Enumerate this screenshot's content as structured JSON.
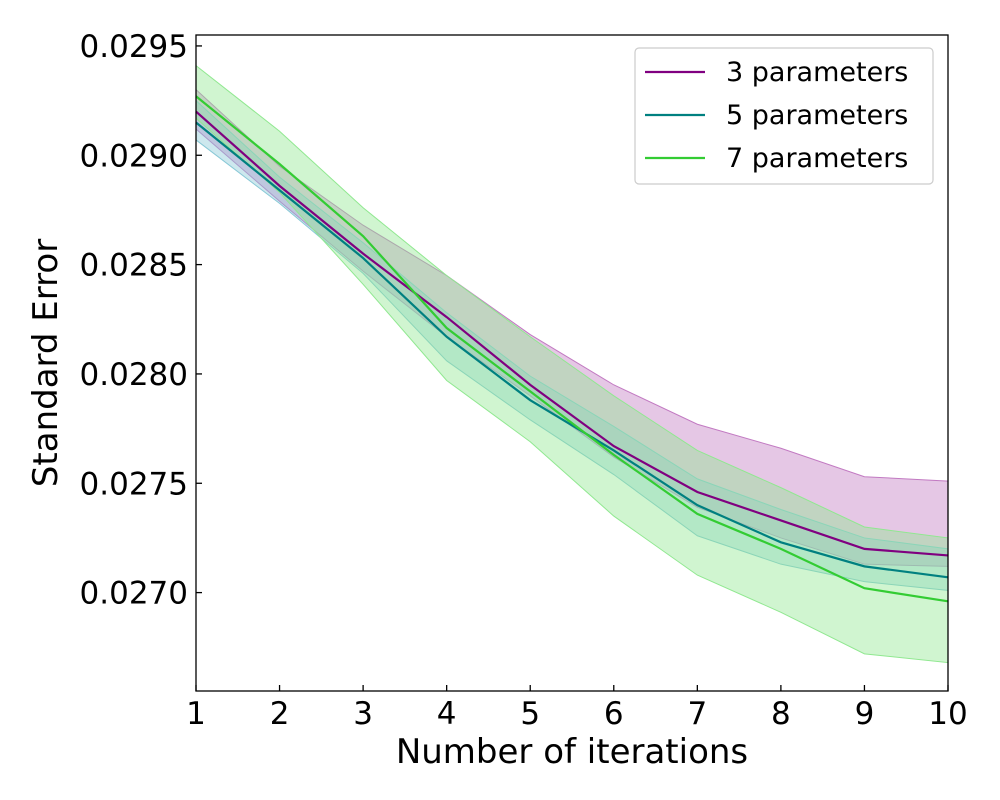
{
  "chart_data": {
    "type": "line",
    "title": "",
    "xlabel": "Number of iterations",
    "ylabel": "Standard Error",
    "xlim": [
      1,
      10
    ],
    "ylim": [
      0.02655,
      0.02955
    ],
    "x_ticks": [
      1,
      2,
      3,
      4,
      5,
      6,
      7,
      8,
      9,
      10
    ],
    "x_tick_labels": [
      "1",
      "2",
      "3",
      "4",
      "5",
      "6",
      "7",
      "8",
      "9",
      "10"
    ],
    "y_ticks": [
      0.027,
      0.0275,
      0.028,
      0.0285,
      0.029,
      0.0295
    ],
    "y_tick_labels": [
      "0.0270",
      "0.0275",
      "0.0280",
      "0.0285",
      "0.0290",
      "0.0295"
    ],
    "grid": false,
    "legend_position": "top-right",
    "x": [
      1,
      2,
      3,
      4,
      5,
      6,
      7,
      8,
      9,
      10
    ],
    "series": [
      {
        "name": "3 parameters",
        "color": "#800080",
        "band_color": "#c27ac2",
        "values": [
          0.0292,
          0.02886,
          0.02855,
          0.02826,
          0.02795,
          0.02767,
          0.02746,
          0.02733,
          0.0272,
          0.02717
        ],
        "lower": [
          0.02912,
          0.02879,
          0.02847,
          0.02817,
          0.0279,
          0.02762,
          0.02739,
          0.02725,
          0.02713,
          0.02712
        ],
        "upper": [
          0.0293,
          0.02895,
          0.02868,
          0.02845,
          0.02818,
          0.02795,
          0.02777,
          0.02766,
          0.02753,
          0.02751
        ]
      },
      {
        "name": "5 parameters",
        "color": "#008080",
        "band_color": "#88c8d6",
        "values": [
          0.02915,
          0.02884,
          0.02853,
          0.02817,
          0.02788,
          0.02765,
          0.0274,
          0.02723,
          0.02712,
          0.02707
        ],
        "lower": [
          0.02907,
          0.02878,
          0.02846,
          0.02806,
          0.02779,
          0.02754,
          0.02726,
          0.02713,
          0.02705,
          0.02701
        ],
        "upper": [
          0.02925,
          0.0289,
          0.0286,
          0.02828,
          0.02799,
          0.02776,
          0.02752,
          0.02738,
          0.02725,
          0.0272
        ]
      },
      {
        "name": "7 parameters",
        "color": "#33cc33",
        "band_color": "#90e890",
        "values": [
          0.02927,
          0.02896,
          0.02863,
          0.02821,
          0.02792,
          0.02763,
          0.02736,
          0.0272,
          0.02702,
          0.02696
        ],
        "lower": [
          0.02917,
          0.02883,
          0.02841,
          0.02797,
          0.02769,
          0.02735,
          0.02708,
          0.02691,
          0.02672,
          0.02668
        ],
        "upper": [
          0.02941,
          0.02911,
          0.02876,
          0.02845,
          0.02817,
          0.0279,
          0.02765,
          0.02748,
          0.0273,
          0.02725
        ]
      }
    ]
  }
}
